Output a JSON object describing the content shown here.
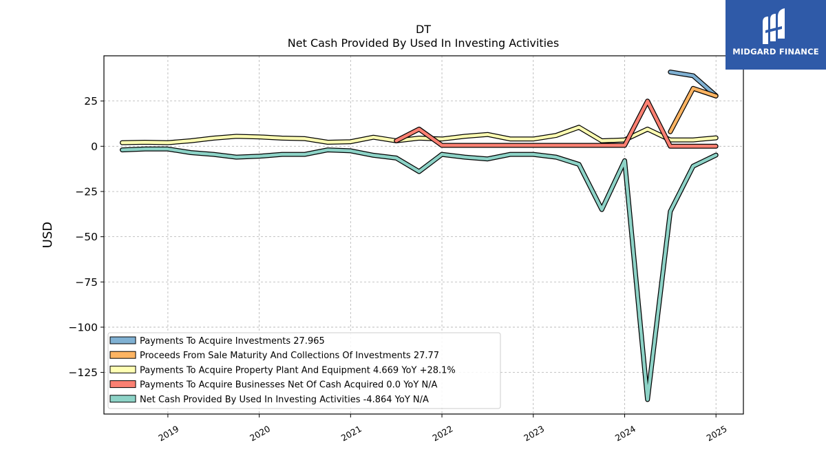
{
  "header": {
    "ticker": "DT",
    "title": "Net Cash Provided By Used In Investing Activities"
  },
  "brand": {
    "name": "MIDGARD FINANCE",
    "color": "#2f5aa8"
  },
  "chart_data": {
    "type": "line",
    "title": "DT\nNet Cash Provided By Used In Investing Activities",
    "xlabel": "",
    "ylabel": "USD",
    "xlim": [
      2018.3,
      2025.3
    ],
    "ylim": [
      -148,
      50
    ],
    "x_ticks": [
      2019,
      2020,
      2021,
      2022,
      2023,
      2024,
      2025
    ],
    "x_tick_labels": [
      "2019",
      "2020",
      "2021",
      "2022",
      "2023",
      "2024",
      "2025"
    ],
    "y_ticks": [
      25,
      0,
      -25,
      -50,
      -75,
      -100,
      -125
    ],
    "y_tick_labels": [
      "25",
      "0",
      "−25",
      "−50",
      "−75",
      "−100",
      "−125"
    ],
    "grid": true,
    "legend_position": "lower-left",
    "series": [
      {
        "name": "Payments To Acquire Investments",
        "legend_label": "Payments To Acquire Investments  27.965",
        "color": "#80b1d3",
        "x": [
          2024.5,
          2024.75,
          2025.0
        ],
        "y": [
          41,
          39,
          27.965
        ]
      },
      {
        "name": "Proceeds From Sale Maturity And Collections Of Investments",
        "legend_label": "Proceeds From Sale Maturity And Collections Of Investments  27.77",
        "color": "#fdb462",
        "x": [
          2024.5,
          2024.75,
          2025.0
        ],
        "y": [
          8,
          32,
          27.77
        ]
      },
      {
        "name": "Payments To Acquire Property Plant And Equipment",
        "legend_label": "Payments To Acquire Property Plant And Equipment  4.669 YoY +28.1%",
        "color": "#ffffb3",
        "x": [
          2018.5,
          2018.75,
          2019.0,
          2019.25,
          2019.5,
          2019.75,
          2020.0,
          2020.25,
          2020.5,
          2020.75,
          2021.0,
          2021.25,
          2021.5,
          2021.75,
          2022.0,
          2022.25,
          2022.5,
          2022.75,
          2023.0,
          2023.25,
          2023.5,
          2023.75,
          2024.0,
          2024.25,
          2024.5,
          2024.75,
          2025.0
        ],
        "y": [
          2,
          2.2,
          2,
          3,
          4.5,
          5.5,
          5.2,
          4.5,
          4.2,
          2.2,
          2.5,
          5,
          3,
          4.5,
          4,
          5.5,
          6.5,
          4,
          4,
          6,
          10.5,
          3,
          3.5,
          9.5,
          3.5,
          3.5,
          4.669
        ]
      },
      {
        "name": "Payments To Acquire Businesses Net Of Cash Acquired",
        "legend_label": "Payments To Acquire Businesses Net Of Cash Acquired  0.0 YoY N/A",
        "color": "#fb8072",
        "x": [
          2021.5,
          2021.75,
          2022.0,
          2022.25,
          2022.5,
          2022.75,
          2023.0,
          2023.25,
          2023.5,
          2023.75,
          2024.0,
          2024.25,
          2024.5,
          2024.75,
          2025.0
        ],
        "y": [
          3,
          9.5,
          0.5,
          0.5,
          0.5,
          0.5,
          0.5,
          0.5,
          0.5,
          0.5,
          0.5,
          25,
          0,
          0,
          0.0
        ]
      },
      {
        "name": "Net Cash Provided By Used In Investing Activities",
        "legend_label": "Net Cash Provided By Used In Investing Activities  -4.864 YoY N/A",
        "color": "#8dd3c7",
        "x": [
          2018.5,
          2018.75,
          2019.0,
          2019.25,
          2019.5,
          2019.75,
          2020.0,
          2020.25,
          2020.5,
          2020.75,
          2021.0,
          2021.25,
          2021.5,
          2021.75,
          2022.0,
          2022.25,
          2022.5,
          2022.75,
          2023.0,
          2023.25,
          2023.5,
          2023.75,
          2024.0,
          2024.25,
          2024.5,
          2024.75,
          2025.0
        ],
        "y": [
          -2,
          -1.5,
          -1.5,
          -3.5,
          -4.5,
          -6,
          -5.5,
          -4.5,
          -4.5,
          -2,
          -2.5,
          -5,
          -6.5,
          -14,
          -4.5,
          -6,
          -7,
          -4.5,
          -4.5,
          -6,
          -10,
          -35,
          -8,
          -140,
          -36,
          -11,
          -4.864
        ]
      }
    ]
  }
}
